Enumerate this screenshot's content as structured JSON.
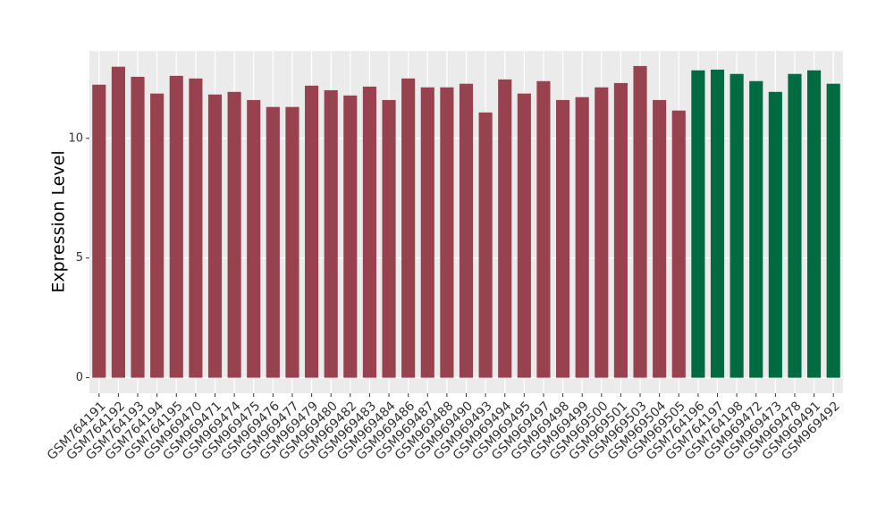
{
  "chart_data": {
    "type": "bar",
    "y_label": "Expression Level",
    "categories": [
      "GSM764191",
      "GSM764192",
      "GSM764193",
      "GSM764194",
      "GSM764195",
      "GSM969470",
      "GSM969471",
      "GSM969474",
      "GSM969475",
      "GSM969476",
      "GSM969477",
      "GSM969479",
      "GSM969480",
      "GSM969482",
      "GSM969483",
      "GSM969484",
      "GSM969486",
      "GSM969487",
      "GSM969488",
      "GSM969490",
      "GSM969493",
      "GSM969494",
      "GSM969495",
      "GSM969497",
      "GSM969498",
      "GSM969499",
      "GSM969500",
      "GSM969501",
      "GSM969503",
      "GSM969504",
      "GSM969505",
      "GSM764196",
      "GSM764197",
      "GSM764198",
      "GSM969472",
      "GSM969473",
      "GSM969478",
      "GSM969491",
      "GSM969492"
    ],
    "values": [
      12.24,
      12.99,
      12.57,
      11.87,
      12.61,
      12.5,
      11.83,
      11.94,
      11.6,
      11.31,
      11.31,
      12.2,
      12.01,
      11.79,
      12.16,
      11.6,
      12.5,
      12.13,
      12.13,
      12.28,
      11.08,
      12.46,
      11.87,
      12.39,
      11.6,
      11.72,
      12.13,
      12.31,
      13.02,
      11.6,
      11.16,
      12.84,
      12.87,
      12.69,
      12.39,
      11.94,
      12.69,
      12.84,
      12.28
    ],
    "colors": [
      "#99424f",
      "#99424f",
      "#99424f",
      "#99424f",
      "#99424f",
      "#99424f",
      "#99424f",
      "#99424f",
      "#99424f",
      "#99424f",
      "#99424f",
      "#99424f",
      "#99424f",
      "#99424f",
      "#99424f",
      "#99424f",
      "#99424f",
      "#99424f",
      "#99424f",
      "#99424f",
      "#99424f",
      "#99424f",
      "#99424f",
      "#99424f",
      "#99424f",
      "#99424f",
      "#99424f",
      "#99424f",
      "#99424f",
      "#99424f",
      "#99424f",
      "#006a43",
      "#006a43",
      "#006a43",
      "#006a43",
      "#006a43",
      "#006a43",
      "#006a43",
      "#006a43"
    ],
    "ylim": [
      -0.65,
      13.65
    ],
    "yticks": [
      0,
      5,
      10
    ],
    "grid": true
  }
}
